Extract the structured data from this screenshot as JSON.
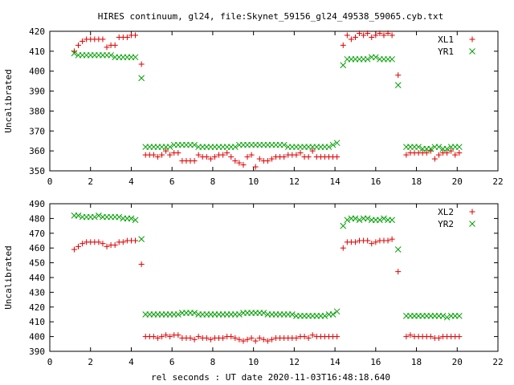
{
  "chart_data": {
    "title": "HIRES continuum, gl24, file:Skynet_59156_gl24_49538_59065.cyb.txt",
    "xlabel": "rel seconds : UT date 2020-11-03T16:48:18.640",
    "panels": [
      {
        "type": "scatter",
        "ylabel": "Uncalibrated",
        "xlim": [
          0,
          22
        ],
        "ylim": [
          350,
          420
        ],
        "xticks": [
          0,
          2,
          4,
          6,
          8,
          10,
          12,
          14,
          16,
          18,
          20,
          22
        ],
        "yticks": [
          350,
          360,
          370,
          380,
          390,
          400,
          410,
          420
        ],
        "grid": false,
        "legend_position": "top-right",
        "series": [
          {
            "name": "XL1",
            "marker": "plus",
            "color": "#dd0000",
            "x": [
              1.2,
              1.4,
              1.6,
              1.8,
              2.0,
              2.2,
              2.4,
              2.6,
              2.8,
              3.0,
              3.2,
              3.4,
              3.6,
              3.8,
              4.0,
              4.2,
              4.5,
              4.7,
              4.9,
              5.1,
              5.3,
              5.5,
              5.7,
              5.9,
              6.1,
              6.3,
              6.5,
              6.7,
              6.9,
              7.1,
              7.3,
              7.5,
              7.7,
              7.9,
              8.1,
              8.3,
              8.5,
              8.7,
              8.9,
              9.1,
              9.3,
              9.5,
              9.7,
              9.9,
              10.1,
              10.3,
              10.5,
              10.7,
              10.9,
              11.1,
              11.3,
              11.5,
              11.7,
              11.9,
              12.1,
              12.3,
              12.5,
              12.7,
              12.9,
              13.1,
              13.3,
              13.5,
              13.7,
              13.9,
              14.1,
              14.4,
              14.6,
              14.8,
              15.0,
              15.2,
              15.4,
              15.6,
              15.8,
              16.0,
              16.2,
              16.4,
              16.6,
              16.8,
              17.1,
              17.5,
              17.7,
              17.9,
              18.1,
              18.3,
              18.5,
              18.7,
              18.9,
              19.1,
              19.3,
              19.5,
              19.7,
              19.9,
              20.1
            ],
            "y": [
              410,
              413,
              415,
              416,
              416,
              416,
              416,
              416,
              412,
              413,
              413,
              417,
              417,
              417,
              418,
              418,
              403.5,
              358,
              358,
              358,
              357,
              358,
              360,
              358,
              359,
              359,
              355,
              355,
              355,
              355,
              358,
              357,
              357,
              356,
              357,
              358,
              358,
              359,
              357,
              355,
              354,
              353,
              357,
              358,
              352,
              356,
              355,
              355,
              356,
              357,
              357,
              357,
              358,
              358,
              358,
              359,
              357,
              357,
              360,
              357,
              357,
              357,
              357,
              357,
              357,
              413,
              418,
              416,
              417,
              419,
              418,
              419,
              417,
              418,
              419,
              418,
              419,
              418,
              398,
              358,
              359,
              359,
              359,
              359,
              359,
              360,
              356,
              358,
              359,
              359,
              360,
              358,
              359
            ]
          },
          {
            "name": "YR1",
            "marker": "cross",
            "color": "#00a000",
            "x": [
              1.2,
              1.4,
              1.6,
              1.8,
              2.0,
              2.2,
              2.4,
              2.6,
              2.8,
              3.0,
              3.2,
              3.4,
              3.6,
              3.8,
              4.0,
              4.2,
              4.5,
              4.7,
              4.9,
              5.1,
              5.3,
              5.5,
              5.7,
              5.9,
              6.1,
              6.3,
              6.5,
              6.7,
              6.9,
              7.1,
              7.3,
              7.5,
              7.7,
              7.9,
              8.1,
              8.3,
              8.5,
              8.7,
              8.9,
              9.1,
              9.3,
              9.5,
              9.7,
              9.9,
              10.1,
              10.3,
              10.5,
              10.7,
              10.9,
              11.1,
              11.3,
              11.5,
              11.7,
              11.9,
              12.1,
              12.3,
              12.5,
              12.7,
              12.9,
              13.1,
              13.3,
              13.5,
              13.7,
              13.9,
              14.1,
              14.4,
              14.6,
              14.8,
              15.0,
              15.2,
              15.4,
              15.6,
              15.8,
              16.0,
              16.2,
              16.4,
              16.6,
              16.8,
              17.1,
              17.5,
              17.7,
              17.9,
              18.1,
              18.3,
              18.5,
              18.7,
              18.9,
              19.1,
              19.3,
              19.5,
              19.7,
              19.9,
              20.1
            ],
            "y": [
              409,
              408,
              408,
              408,
              408,
              408,
              408,
              408,
              408,
              408,
              407,
              407,
              407,
              407,
              407,
              407,
              396.5,
              362,
              362,
              362,
              362,
              362,
              362,
              362,
              363,
              363,
              363,
              363,
              363,
              363,
              362,
              362,
              362,
              362,
              362,
              362,
              362,
              362,
              362,
              362,
              363,
              363,
              363,
              363,
              363,
              363,
              363,
              363,
              363,
              363,
              363,
              363,
              362,
              362,
              362,
              362,
              362,
              362,
              362,
              362,
              362,
              362,
              362,
              363,
              364,
              403,
              406,
              406,
              406,
              406,
              406,
              406,
              407,
              407,
              406,
              406,
              406,
              406,
              393,
              362,
              362,
              362,
              362,
              361,
              361,
              361,
              362,
              362,
              361,
              361,
              362,
              362,
              362
            ]
          }
        ]
      },
      {
        "type": "scatter",
        "ylabel": "Uncalibrated",
        "xlim": [
          0,
          22
        ],
        "ylim": [
          390,
          490
        ],
        "xticks": [
          0,
          2,
          4,
          6,
          8,
          10,
          12,
          14,
          16,
          18,
          20,
          22
        ],
        "yticks": [
          390,
          400,
          410,
          420,
          430,
          440,
          450,
          460,
          470,
          480,
          490
        ],
        "grid": false,
        "legend_position": "top-right",
        "series": [
          {
            "name": "XL2",
            "marker": "plus",
            "color": "#dd0000",
            "x": [
              1.2,
              1.4,
              1.6,
              1.8,
              2.0,
              2.2,
              2.4,
              2.6,
              2.8,
              3.0,
              3.2,
              3.4,
              3.6,
              3.8,
              4.0,
              4.2,
              4.5,
              4.7,
              4.9,
              5.1,
              5.3,
              5.5,
              5.7,
              5.9,
              6.1,
              6.3,
              6.5,
              6.7,
              6.9,
              7.1,
              7.3,
              7.5,
              7.7,
              7.9,
              8.1,
              8.3,
              8.5,
              8.7,
              8.9,
              9.1,
              9.3,
              9.5,
              9.7,
              9.9,
              10.1,
              10.3,
              10.5,
              10.7,
              10.9,
              11.1,
              11.3,
              11.5,
              11.7,
              11.9,
              12.1,
              12.3,
              12.5,
              12.7,
              12.9,
              13.1,
              13.3,
              13.5,
              13.7,
              13.9,
              14.1,
              14.4,
              14.6,
              14.8,
              15.0,
              15.2,
              15.4,
              15.6,
              15.8,
              16.0,
              16.2,
              16.4,
              16.6,
              16.8,
              17.1,
              17.5,
              17.7,
              17.9,
              18.1,
              18.3,
              18.5,
              18.7,
              18.9,
              19.1,
              19.3,
              19.5,
              19.7,
              19.9,
              20.1
            ],
            "y": [
              459,
              461,
              463,
              464,
              464,
              464,
              464,
              463,
              461,
              462,
              462,
              464,
              464,
              465,
              465,
              465,
              449,
              400,
              400,
              400,
              399,
              400,
              401,
              400,
              401,
              401,
              399,
              399,
              399,
              398,
              400,
              399,
              399,
              398,
              399,
              399,
              399,
              400,
              400,
              399,
              398,
              397,
              398,
              399,
              397,
              399,
              398,
              397,
              398,
              399,
              399,
              399,
              399,
              399,
              399,
              400,
              400,
              399,
              401,
              400,
              400,
              400,
              400,
              400,
              400,
              460,
              464,
              464,
              464,
              465,
              465,
              465,
              463,
              464,
              465,
              465,
              465,
              466,
              444,
              400,
              401,
              400,
              400,
              400,
              400,
              400,
              399,
              399,
              400,
              400,
              400,
              400,
              400
            ]
          },
          {
            "name": "YR2",
            "marker": "cross",
            "color": "#00a000",
            "x": [
              1.2,
              1.4,
              1.6,
              1.8,
              2.0,
              2.2,
              2.4,
              2.6,
              2.8,
              3.0,
              3.2,
              3.4,
              3.6,
              3.8,
              4.0,
              4.2,
              4.5,
              4.7,
              4.9,
              5.1,
              5.3,
              5.5,
              5.7,
              5.9,
              6.1,
              6.3,
              6.5,
              6.7,
              6.9,
              7.1,
              7.3,
              7.5,
              7.7,
              7.9,
              8.1,
              8.3,
              8.5,
              8.7,
              8.9,
              9.1,
              9.3,
              9.5,
              9.7,
              9.9,
              10.1,
              10.3,
              10.5,
              10.7,
              10.9,
              11.1,
              11.3,
              11.5,
              11.7,
              11.9,
              12.1,
              12.3,
              12.5,
              12.7,
              12.9,
              13.1,
              13.3,
              13.5,
              13.7,
              13.9,
              14.1,
              14.4,
              14.6,
              14.8,
              15.0,
              15.2,
              15.4,
              15.6,
              15.8,
              16.0,
              16.2,
              16.4,
              16.6,
              16.8,
              17.1,
              17.5,
              17.7,
              17.9,
              18.1,
              18.3,
              18.5,
              18.7,
              18.9,
              19.1,
              19.3,
              19.5,
              19.7,
              19.9,
              20.1
            ],
            "y": [
              482,
              482,
              481,
              481,
              481,
              481,
              482,
              481,
              481,
              481,
              481,
              481,
              480,
              480,
              480,
              479,
              466,
              415,
              415,
              415,
              415,
              415,
              415,
              415,
              415,
              415,
              416,
              416,
              416,
              416,
              415,
              415,
              415,
              415,
              415,
              415,
              415,
              415,
              415,
              415,
              415,
              416,
              416,
              416,
              416,
              416,
              416,
              415,
              415,
              415,
              415,
              415,
              415,
              415,
              414,
              414,
              414,
              414,
              414,
              414,
              414,
              414,
              415,
              415,
              417,
              475,
              479,
              480,
              480,
              479,
              480,
              480,
              479,
              479,
              479,
              480,
              479,
              479,
              459,
              414,
              414,
              414,
              414,
              414,
              414,
              414,
              414,
              414,
              414,
              413,
              414,
              414,
              414
            ]
          }
        ]
      }
    ]
  }
}
